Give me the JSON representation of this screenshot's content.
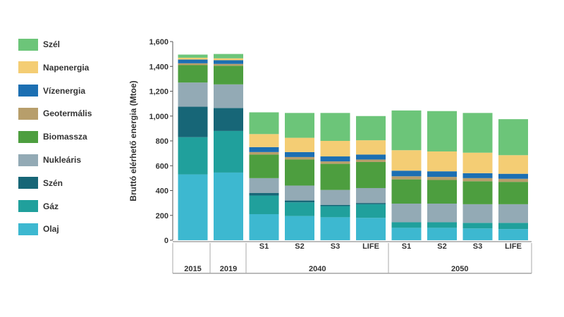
{
  "chart_data": {
    "type": "bar",
    "stacked": true,
    "ylabel": "Bruttó elérhető energia (Mtoe)",
    "ylim": [
      0,
      1600
    ],
    "yticks": [
      "0",
      "200",
      "400",
      "600",
      "800",
      "1,000",
      "1,200",
      "1,400",
      "1,600"
    ],
    "yticks_values": [
      0,
      200,
      400,
      600,
      800,
      1000,
      1200,
      1400,
      1600
    ],
    "grid": false,
    "legend_position": "left",
    "categories": [
      "2015",
      "2019",
      "S1",
      "S2",
      "S3",
      "LIFE",
      "S1",
      "S2",
      "S3",
      "LIFE"
    ],
    "groups": [
      {
        "label": "2015",
        "categories": [
          0
        ]
      },
      {
        "label": "2019",
        "categories": [
          1
        ]
      },
      {
        "label": "2040",
        "categories": [
          2,
          3,
          4,
          5
        ]
      },
      {
        "label": "2050",
        "categories": [
          6,
          7,
          8,
          9
        ]
      }
    ],
    "series": [
      {
        "name": "Olaj",
        "color": "#3db8d0",
        "values": [
          530,
          545,
          210,
          195,
          185,
          180,
          100,
          100,
          95,
          90
        ]
      },
      {
        "name": "Gáz",
        "color": "#20a09c",
        "values": [
          300,
          335,
          150,
          110,
          90,
          110,
          45,
          45,
          45,
          50
        ]
      },
      {
        "name": "Szén",
        "color": "#176677",
        "values": [
          245,
          185,
          20,
          15,
          10,
          10,
          0,
          0,
          0,
          0
        ]
      },
      {
        "name": "Nukleáris",
        "color": "#93aab5",
        "values": [
          195,
          190,
          120,
          120,
          120,
          120,
          150,
          150,
          150,
          150
        ]
      },
      {
        "name": "Biomassza",
        "color": "#4d9e3f",
        "values": [
          140,
          150,
          190,
          210,
          210,
          210,
          195,
          190,
          185,
          180
        ]
      },
      {
        "name": "Geotermális",
        "color": "#b79e6b",
        "values": [
          15,
          15,
          20,
          20,
          20,
          20,
          25,
          25,
          25,
          25
        ]
      },
      {
        "name": "Vízenergia",
        "color": "#1c6fb2",
        "values": [
          30,
          30,
          40,
          40,
          40,
          40,
          45,
          45,
          40,
          40
        ]
      },
      {
        "name": "Napenergia",
        "color": "#f4cd74",
        "values": [
          15,
          15,
          105,
          115,
          125,
          115,
          165,
          160,
          165,
          150
        ]
      },
      {
        "name": "Szél",
        "color": "#6cc579",
        "values": [
          25,
          35,
          175,
          200,
          225,
          195,
          320,
          325,
          320,
          290
        ]
      }
    ]
  }
}
